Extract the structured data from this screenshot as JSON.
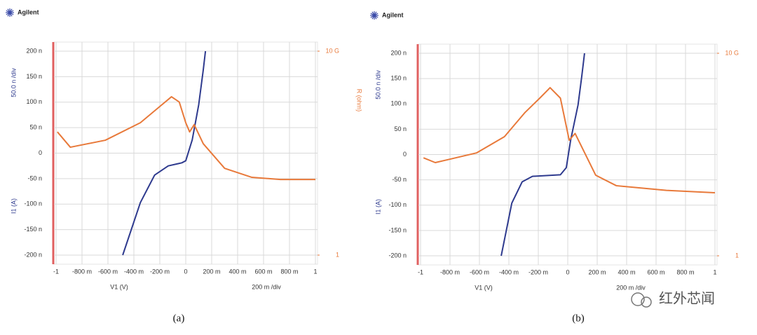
{
  "chart_data": [
    {
      "type": "line",
      "title": "Agilent",
      "y_label": "I1 (A)",
      "y_scale_label": "50.0 n /div",
      "y2_label": "R (ohm)",
      "x_label": "V1 (V)",
      "x_scale_label": "200 m /div",
      "caption": "(a)",
      "xlim": [
        -1,
        1
      ],
      "xticks": [
        -1,
        {
          "value": -0.8,
          "label": "-800 m"
        },
        {
          "value": -0.6,
          "label": "-600 m"
        },
        {
          "value": -0.4,
          "label": "-400 m"
        },
        {
          "value": -0.2,
          "label": "-200 m"
        },
        0,
        {
          "value": 0.2,
          "label": "200 m"
        },
        {
          "value": 0.4,
          "label": "400 m"
        },
        {
          "value": 0.6,
          "label": "600 m"
        },
        {
          "value": 0.8,
          "label": "800 m"
        },
        1
      ],
      "ylim": [
        -2e-07,
        2e-07
      ],
      "yticks": [
        {
          "value": 2e-07,
          "label": "200 n"
        },
        {
          "value": 1.5e-07,
          "label": "150 n"
        },
        {
          "value": 1e-07,
          "label": "100 n"
        },
        {
          "value": 5e-08,
          "label": "50 n"
        },
        0,
        {
          "value": -5e-08,
          "label": "-50 n"
        },
        {
          "value": -1e-07,
          "label": "-100 n"
        },
        {
          "value": -1.5e-07,
          "label": "-150 n"
        },
        {
          "value": -2e-07,
          "label": "-200 n"
        }
      ],
      "y2lim": [
        1,
        10000000000
      ],
      "y2ticks": [
        {
          "value": 10000000000,
          "label": "10 G"
        },
        1
      ],
      "y2_log": true,
      "grid": true,
      "series": [
        {
          "color": "#2e3a8e",
          "x": [
            -0.486,
            -0.35,
            -0.24,
            -0.135,
            -0.03,
            0,
            0.05,
            0.1,
            0.135,
            0.152
          ],
          "values": [
            -2e-07,
            -9.7e-08,
            -4.3e-08,
            -2.5e-08,
            -1.9e-08,
            -1.5e-08,
            2.6e-08,
            9.5e-08,
            1.63e-07,
            2e-07
          ]
        },
        {
          "color": "#e8793a",
          "axis": "y2",
          "x": [
            -0.99,
            -0.89,
            -0.62,
            -0.35,
            -0.19,
            -0.11,
            -0.05,
            0,
            0.03,
            0.065,
            0.135,
            0.3,
            0.51,
            0.73,
            1
          ],
          "values": [
            1100000,
            195000,
            430000,
            3100000,
            22000000,
            58000000,
            32000000,
            3100000,
            1100000,
            2500000,
            290000,
            18000,
            6500,
            5100,
            5100
          ]
        }
      ]
    },
    {
      "type": "line",
      "title": "Agilent",
      "y_label": "I1 (A)",
      "y_scale_label": "50.0 n /div",
      "x_label": "V1 (V)",
      "x_scale_label": "200 m /div",
      "caption": "(b)",
      "xlim": [
        -1,
        1
      ],
      "xticks": [
        -1,
        {
          "value": -0.8,
          "label": "-800 m"
        },
        {
          "value": -0.6,
          "label": "-600 m"
        },
        {
          "value": -0.4,
          "label": "-400 m"
        },
        {
          "value": -0.2,
          "label": "-200 m"
        },
        0,
        {
          "value": 0.2,
          "label": "200 m"
        },
        {
          "value": 0.4,
          "label": "400 m"
        },
        {
          "value": 0.6,
          "label": "600 m"
        },
        {
          "value": 0.8,
          "label": "800 m"
        },
        1
      ],
      "ylim": [
        -2e-07,
        2e-07
      ],
      "yticks": [
        {
          "value": 2e-07,
          "label": "200 n"
        },
        {
          "value": 1.5e-07,
          "label": "150 n"
        },
        {
          "value": 1e-07,
          "label": "100 n"
        },
        {
          "value": 5e-08,
          "label": "50 n"
        },
        0,
        {
          "value": -5e-08,
          "label": "-50 n"
        },
        {
          "value": -1e-07,
          "label": "-100 n"
        },
        {
          "value": -1.5e-07,
          "label": "-150 n"
        },
        {
          "value": -2e-07,
          "label": "-200 n"
        }
      ],
      "y2lim": [
        1,
        10000000000
      ],
      "y2ticks": [
        {
          "value": 10000000000,
          "label": "10 G"
        },
        1
      ],
      "y2_log": true,
      "grid": true,
      "series": [
        {
          "color": "#2e3a8e",
          "x": [
            -0.452,
            -0.38,
            -0.31,
            -0.24,
            -0.05,
            -0.01,
            0.02,
            0.07,
            0.095,
            0.114
          ],
          "values": [
            -2e-07,
            -9.6e-08,
            -5.4e-08,
            -4.3e-08,
            -4e-08,
            -2.6e-08,
            2.9e-08,
            9.8e-08,
            1.54e-07,
            2e-07
          ]
        },
        {
          "color": "#e8793a",
          "axis": "y2",
          "x": [
            -0.98,
            -0.9,
            -0.62,
            -0.43,
            -0.29,
            -0.19,
            -0.12,
            -0.05,
            0.01,
            0.05,
            0.19,
            0.33,
            0.67,
            1
          ],
          "values": [
            69000,
            40000,
            120000,
            760000,
            12000000,
            61000000,
            200000000,
            61000000,
            510000,
            1100000,
            9500,
            2900,
            1700,
            1300
          ]
        }
      ]
    }
  ],
  "watermark": "红外芯闻"
}
